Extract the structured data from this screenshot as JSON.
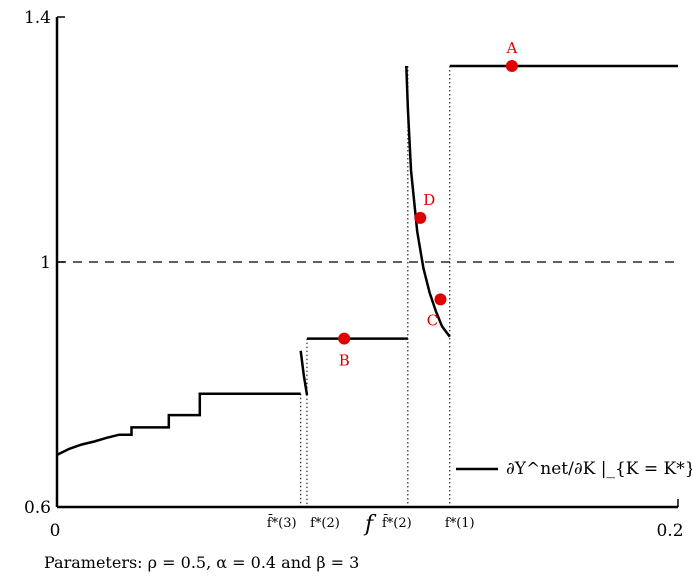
{
  "chart_data": {
    "type": "line",
    "xlabel": "f",
    "xlim": [
      0,
      0.2
    ],
    "ylim": [
      0.6,
      1.4
    ],
    "x_ticks": [
      {
        "value": 0,
        "label": "0"
      },
      {
        "value": 0.2,
        "label": "0.2"
      }
    ],
    "y_ticks": [
      {
        "value": 0.6,
        "label": "0.6"
      },
      {
        "value": 1.0,
        "label": "1"
      },
      {
        "value": 1.4,
        "label": "1.4"
      }
    ],
    "reference_line": {
      "y": 1.0,
      "style": "dashed"
    },
    "legend": {
      "position": "bottom-right",
      "entry": "∂Y^net/∂K |_{K = K*}"
    },
    "series": [
      {
        "segment": "region-3",
        "x": [
          0,
          0.004,
          0.008,
          0.012,
          0.016,
          0.02,
          0.024,
          0.024,
          0.03,
          0.036,
          0.036,
          0.046,
          0.046,
          0.06,
          0.06,
          0.0785
        ],
        "y": [
          0.685,
          0.695,
          0.702,
          0.707,
          0.713,
          0.718,
          0.718,
          0.73,
          0.73,
          0.73,
          0.75,
          0.75,
          0.785,
          0.785,
          0.785,
          0.785
        ]
      },
      {
        "segment": "drop-3",
        "x": [
          0.0785,
          0.0795,
          0.0805
        ],
        "y": [
          0.855,
          0.815,
          0.783
        ]
      },
      {
        "segment": "region-2",
        "x": [
          0.0805,
          0.1
        ],
        "y": [
          0.875,
          0.875
        ]
      },
      {
        "segment": "region-2",
        "x": [
          0.1,
          0.113
        ],
        "y": [
          0.875,
          0.875
        ]
      },
      {
        "segment": "drop-1",
        "x": [
          0.1125,
          0.113,
          0.114,
          0.116,
          0.118,
          0.12,
          0.122,
          0.124,
          0.1265
        ],
        "y": [
          1.32,
          1.25,
          1.15,
          1.05,
          0.99,
          0.95,
          0.92,
          0.895,
          0.878
        ]
      },
      {
        "segment": "region-1",
        "x": [
          0.1265,
          0.2
        ],
        "y": [
          1.32,
          1.32
        ]
      }
    ],
    "points": [
      {
        "label": "A",
        "x": 0.1465,
        "y": 1.32
      },
      {
        "label": "B",
        "x": 0.0925,
        "y": 0.875
      },
      {
        "label": "C",
        "x": 0.1235,
        "y": 0.939
      },
      {
        "label": "D",
        "x": 0.117,
        "y": 1.072
      }
    ],
    "vertical_cuts": [
      {
        "x": 0.0785,
        "label": "f̄*(3)"
      },
      {
        "x": 0.0805,
        "label": "f*(2)"
      },
      {
        "x": 0.113,
        "label": "f̄*(2)"
      },
      {
        "x": 0.1265,
        "label": "f*(1)"
      }
    ],
    "caption": "Parameters: ρ = 0.5, α = 0.4 and β = 3"
  }
}
